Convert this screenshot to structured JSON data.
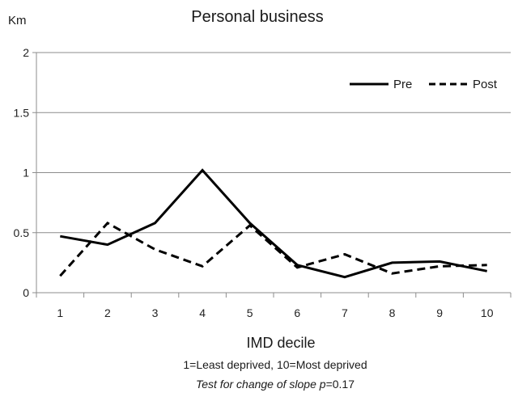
{
  "chart_data": {
    "type": "line",
    "title": "Personal business",
    "ylabel": "Km",
    "xlabel": "IMD  decile",
    "categories": [
      "1",
      "2",
      "3",
      "4",
      "5",
      "6",
      "7",
      "8",
      "9",
      "10"
    ],
    "series": [
      {
        "name": "Pre",
        "style": "solid",
        "color": "#000000",
        "values": [
          0.47,
          0.4,
          0.58,
          1.02,
          0.58,
          0.23,
          0.13,
          0.25,
          0.26,
          0.18
        ]
      },
      {
        "name": "Post",
        "style": "dashed",
        "color": "#000000",
        "values": [
          0.14,
          0.58,
          0.36,
          0.22,
          0.56,
          0.21,
          0.32,
          0.16,
          0.22,
          0.23
        ]
      }
    ],
    "ylim": [
      0,
      2
    ],
    "yticks": [
      0,
      0.5,
      1,
      1.5,
      2
    ],
    "ytick_labels": [
      "0",
      "0.5",
      "1",
      "1.5",
      "2"
    ],
    "grid": true,
    "legend_position": "top-right",
    "notes": [
      "1=Least deprived, 10=Most deprived"
    ],
    "test_note": {
      "prefix": "Test for change of slope ",
      "variable": "p",
      "value": "=0.17"
    }
  }
}
